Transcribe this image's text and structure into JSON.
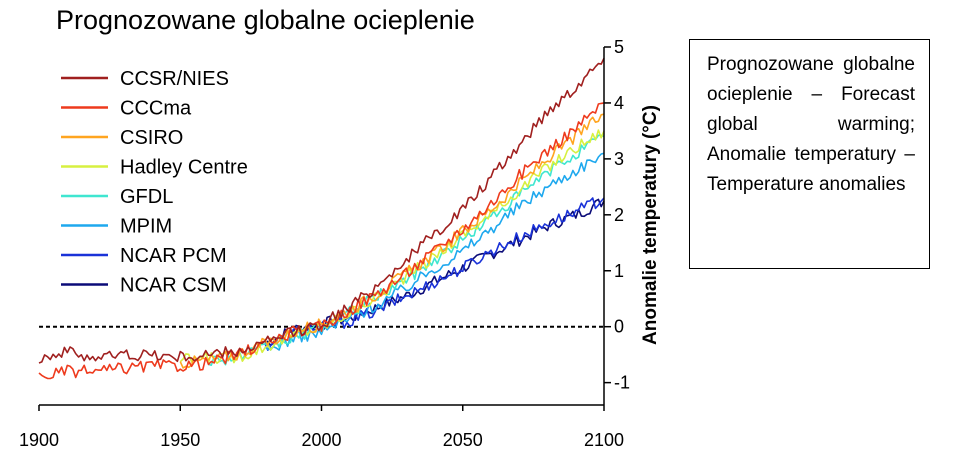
{
  "note_text": "Prognozowane glob­alne ocieplenie – Forecast global warming; Anomalie temperatury – Tem­perature anomalies",
  "chart_data": {
    "type": "line",
    "title": "Prognozowane globalne ocieplenie",
    "xlabel": "",
    "ylabel": "Anomalie temperatury (°C)",
    "xlim": [
      1900,
      2100
    ],
    "ylim": [
      -1.4,
      5
    ],
    "x_ticks": [
      1900,
      1950,
      2000,
      2050,
      2100
    ],
    "y_ticks": [
      -1,
      0,
      1,
      2,
      3,
      4,
      5
    ],
    "y_axis_side": "right",
    "grid": false,
    "legend_position": "top-left",
    "reference_line": {
      "y": 0,
      "style": "dotted"
    },
    "series": [
      {
        "name": "CCSR/NIES",
        "color": "#a0201f",
        "x": [
          1900,
          1910,
          1920,
          1930,
          1940,
          1950,
          1960,
          1970,
          1980,
          1990,
          2000,
          2010,
          2020,
          2030,
          2040,
          2050,
          2060,
          2070,
          2080,
          2090,
          2100
        ],
        "values": [
          -0.55,
          -0.45,
          -0.55,
          -0.5,
          -0.5,
          -0.55,
          -0.5,
          -0.45,
          -0.3,
          -0.1,
          0.05,
          0.35,
          0.75,
          1.2,
          1.65,
          2.1,
          2.65,
          3.25,
          3.85,
          4.3,
          4.8
        ]
      },
      {
        "name": "CCCma",
        "color": "#ee3a1d",
        "x": [
          1900,
          1910,
          1920,
          1930,
          1940,
          1950,
          1960,
          1970,
          1980,
          1990,
          2000,
          2010,
          2020,
          2030,
          2040,
          2050,
          2060,
          2070,
          2080,
          2090,
          2100
        ],
        "values": [
          -0.9,
          -0.8,
          -0.8,
          -0.75,
          -0.7,
          -0.7,
          -0.65,
          -0.5,
          -0.3,
          -0.1,
          0.0,
          0.3,
          0.6,
          0.95,
          1.35,
          1.75,
          2.2,
          2.7,
          3.15,
          3.55,
          4.0
        ]
      },
      {
        "name": "CSIRO",
        "color": "#ffa520",
        "x": [
          1950,
          1960,
          1970,
          1980,
          1990,
          2000,
          2010,
          2020,
          2030,
          2040,
          2050,
          2060,
          2070,
          2080,
          2090,
          2100
        ],
        "values": [
          -0.65,
          -0.6,
          -0.5,
          -0.3,
          -0.1,
          0.05,
          0.3,
          0.6,
          0.95,
          1.3,
          1.7,
          2.1,
          2.55,
          3.0,
          3.4,
          3.8
        ]
      },
      {
        "name": "Hadley Centre",
        "color": "#d7f040",
        "x": [
          1950,
          1960,
          1970,
          1980,
          1990,
          2000,
          2010,
          2020,
          2030,
          2040,
          2050,
          2060,
          2070,
          2080,
          2090,
          2100
        ],
        "values": [
          -0.6,
          -0.55,
          -0.55,
          -0.35,
          -0.15,
          0.0,
          0.25,
          0.55,
          0.9,
          1.25,
          1.65,
          2.0,
          2.45,
          2.85,
          3.2,
          3.5
        ]
      },
      {
        "name": "GFDL",
        "color": "#3fe6d0",
        "x": [
          1960,
          1970,
          1980,
          1990,
          2000,
          2010,
          2020,
          2030,
          2040,
          2050,
          2060,
          2070,
          2080,
          2090,
          2100
        ],
        "values": [
          -0.6,
          -0.55,
          -0.4,
          -0.2,
          0.0,
          0.25,
          0.55,
          0.85,
          1.2,
          1.55,
          1.95,
          2.35,
          2.75,
          3.1,
          3.4
        ]
      },
      {
        "name": "MPIM",
        "color": "#1ea8ee",
        "x": [
          1980,
          1990,
          2000,
          2010,
          2020,
          2030,
          2040,
          2050,
          2060,
          2070,
          2080,
          2090,
          2100
        ],
        "values": [
          -0.45,
          -0.2,
          -0.1,
          0.15,
          0.4,
          0.7,
          1.05,
          1.35,
          1.75,
          2.15,
          2.5,
          2.8,
          3.1
        ]
      },
      {
        "name": "NCAR PCM",
        "color": "#1a32d8",
        "x": [
          1980,
          1990,
          2000,
          2010,
          2020,
          2030,
          2040,
          2050,
          2060,
          2070,
          2080,
          2090,
          2100
        ],
        "values": [
          -0.35,
          -0.1,
          0.0,
          0.1,
          0.3,
          0.55,
          0.8,
          1.05,
          1.35,
          1.6,
          1.85,
          2.05,
          2.3
        ]
      },
      {
        "name": "NCAR CSM",
        "color": "#0b0b78",
        "x": [
          1980,
          1990,
          2000,
          2010,
          2020,
          2030,
          2040,
          2050,
          2060,
          2070,
          2080,
          2090,
          2100
        ],
        "values": [
          -0.3,
          -0.05,
          0.05,
          0.15,
          0.35,
          0.55,
          0.8,
          1.05,
          1.3,
          1.55,
          1.8,
          2.0,
          2.25
        ]
      }
    ]
  }
}
